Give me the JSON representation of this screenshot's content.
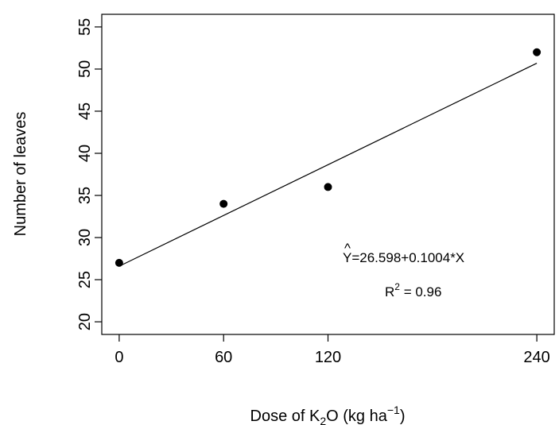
{
  "chart_data": {
    "type": "scatter",
    "x": [
      0,
      60,
      120,
      240
    ],
    "y": [
      27,
      34,
      36,
      52
    ],
    "xticks": [
      0,
      60,
      120,
      240
    ],
    "yticks": [
      20,
      25,
      30,
      35,
      40,
      45,
      50,
      55
    ],
    "xlim": [
      -10,
      250
    ],
    "ylim": [
      18.5,
      56.5
    ],
    "xlabel": {
      "prefix": "Dose of K",
      "sub": "2",
      "mid": "O (kg ha",
      "sup": "−1",
      "suffix": ")"
    },
    "ylabel": "Number of leaves",
    "fit_line": {
      "intercept": 26.598,
      "slope": 0.1004,
      "x_range": [
        0,
        240
      ]
    },
    "equation": {
      "hat": "^",
      "lhs": "Y",
      "rhs": "=26.598+0.1004*X"
    },
    "r_squared": {
      "symbol": "R",
      "sup": "2",
      "rest": " = 0.96"
    },
    "grid": false,
    "legend": "none",
    "point_color": "#000000",
    "line_color": "#000000"
  }
}
